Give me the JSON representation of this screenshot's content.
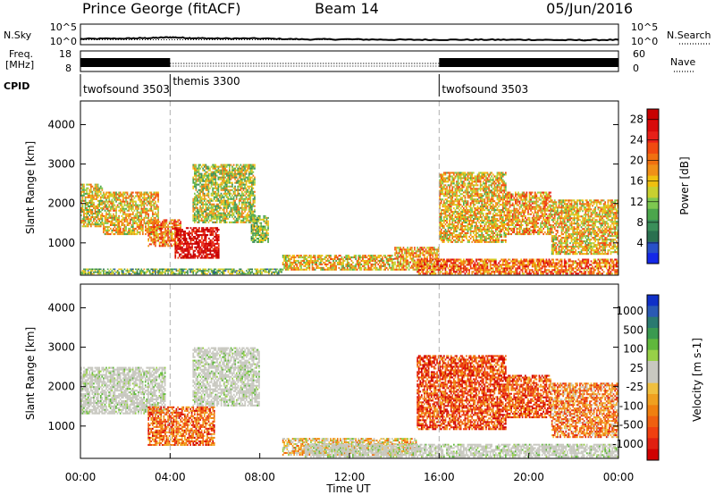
{
  "header": {
    "station": "Prince George (fitACF)",
    "beam": "Beam 14",
    "date": "05/Jun/2016"
  },
  "chart_data": [
    {
      "type": "line",
      "panel": "noise",
      "left_label": "N.Sky",
      "right_label": "N.Search",
      "left_ticks": [
        "10^5",
        "10^0"
      ],
      "right_ticks": [
        "10^5",
        "10^0"
      ],
      "scale": "log",
      "ylim_exponent": [
        0,
        5
      ],
      "series": [
        {
          "name": "N.Sky",
          "style": "solid",
          "x_hours": [
            0,
            2,
            3,
            4,
            5,
            6,
            8,
            10,
            12,
            14,
            16,
            18,
            20,
            22,
            24
          ],
          "y_exp": [
            1.4,
            1.5,
            1.6,
            1.8,
            1.6,
            1.5,
            1.5,
            1.3,
            1.3,
            1.2,
            1.2,
            1.2,
            1.2,
            1.1,
            1.2
          ]
        },
        {
          "name": "N.Search",
          "style": "dotted",
          "x_hours": [
            0,
            24
          ],
          "y_exp": [
            1.2,
            1.2
          ]
        }
      ]
    },
    {
      "type": "line",
      "panel": "frequency",
      "left_label": "Freq.",
      "left_unit": "[MHz]",
      "right_label": "Nave",
      "left_ticks": [
        "18",
        "8"
      ],
      "right_ticks": [
        "60",
        "0"
      ],
      "note": "frequency toggles between two values while twofsound runs (drawn as a dense black band)",
      "series": [
        {
          "name": "Freq.",
          "segments": [
            [
              0,
              4,
              "band"
            ],
            [
              4,
              16,
              "dotted"
            ],
            [
              16,
              24,
              "band"
            ]
          ]
        },
        {
          "name": "Nave",
          "style": "dotted",
          "x_hours": [
            4,
            16
          ],
          "approx": 10
        }
      ]
    },
    {
      "type": "table",
      "panel": "cpid",
      "label": "CPID",
      "programs": [
        {
          "name": "twofsound",
          "id": "3503",
          "start_hour": 0,
          "end_hour": 4
        },
        {
          "name": "themis",
          "id": "3300",
          "start_hour": 4,
          "end_hour": 16
        },
        {
          "name": "twofsound",
          "id": "3503",
          "start_hour": 16,
          "end_hour": 24
        }
      ]
    },
    {
      "type": "heatmap",
      "panel": "power",
      "ylabel": "Slant Range [km]",
      "y_ticks": [
        1000,
        2000,
        3000,
        4000
      ],
      "ylim": [
        180,
        4600
      ],
      "xlim_hours": [
        0,
        24
      ],
      "colorbar": {
        "title": "Power [dB]",
        "ticks": [
          4,
          8,
          12,
          16,
          20,
          24,
          28
        ],
        "range": [
          0,
          30
        ],
        "colors": [
          "#1428e8",
          "#2850c8",
          "#2a7050",
          "#3a8f5a",
          "#4ca64c",
          "#7ec850",
          "#c8d030",
          "#f0c010",
          "#f09018",
          "#f07010",
          "#f04a10",
          "#e82018",
          "#d80a0a",
          "#c80000"
        ]
      },
      "regions": [
        {
          "t": [
            0.0,
            1.0
          ],
          "r": [
            1400,
            2500
          ],
          "level": 0.5
        },
        {
          "t": [
            1.0,
            3.5
          ],
          "r": [
            1200,
            2300
          ],
          "level": 0.55
        },
        {
          "t": [
            3.0,
            4.5
          ],
          "r": [
            900,
            1600
          ],
          "level": 0.65
        },
        {
          "t": [
            4.2,
            6.2
          ],
          "r": [
            600,
            1400
          ],
          "level": 0.95
        },
        {
          "t": [
            5.0,
            7.8
          ],
          "r": [
            1500,
            3000
          ],
          "level": 0.45
        },
        {
          "t": [
            7.6,
            8.4
          ],
          "r": [
            1000,
            1700
          ],
          "level": 0.4
        },
        {
          "t": [
            9.0,
            14.0
          ],
          "r": [
            300,
            700
          ],
          "level": 0.55
        },
        {
          "t": [
            14.0,
            16.0
          ],
          "r": [
            300,
            900
          ],
          "level": 0.6
        },
        {
          "t": [
            16.0,
            19.0
          ],
          "r": [
            1000,
            2800
          ],
          "level": 0.55
        },
        {
          "t": [
            19.0,
            21.0
          ],
          "r": [
            1200,
            2300
          ],
          "level": 0.6
        },
        {
          "t": [
            21.0,
            24.0
          ],
          "r": [
            700,
            2100
          ],
          "level": 0.55
        },
        {
          "t": [
            15.0,
            24.0
          ],
          "r": [
            200,
            600
          ],
          "level": 0.7
        },
        {
          "t": [
            0.0,
            9.0
          ],
          "r": [
            200,
            350
          ],
          "level": 0.35
        }
      ]
    },
    {
      "type": "heatmap",
      "panel": "velocity",
      "ylabel": "Slant Range [km]",
      "xlabel": "Time UT",
      "x_ticks": [
        "00:00",
        "04:00",
        "08:00",
        "12:00",
        "16:00",
        "20:00",
        "00:00"
      ],
      "y_ticks": [
        1000,
        2000,
        3000,
        4000
      ],
      "ylim": [
        180,
        4600
      ],
      "xlim_hours": [
        0,
        24
      ],
      "colorbar": {
        "title": "Velocity [m s-1]",
        "ticks": [
          "1000",
          "500",
          "100",
          "25",
          "-25",
          "-100",
          "-500",
          "-1000"
        ],
        "colors": [
          "#1030c8",
          "#2a5ab4",
          "#2a7a70",
          "#3a9a50",
          "#60b83c",
          "#98d048",
          "#c8c8c0",
          "#c8c8c0",
          "#f0c040",
          "#f0a020",
          "#f08010",
          "#f06010",
          "#f04010",
          "#e02010",
          "#d00000"
        ]
      },
      "regions": [
        {
          "t": [
            0.0,
            3.8
          ],
          "r": [
            1300,
            2500
          ],
          "level": 0.5
        },
        {
          "t": [
            3.0,
            6.0
          ],
          "r": [
            500,
            1500
          ],
          "level": 0.75
        },
        {
          "t": [
            5.0,
            8.0
          ],
          "r": [
            1500,
            3000
          ],
          "level": 0.5
        },
        {
          "t": [
            9.0,
            15.0
          ],
          "r": [
            250,
            700
          ],
          "level": 0.55
        },
        {
          "t": [
            15.0,
            19.0
          ],
          "r": [
            900,
            2800
          ],
          "level": 0.82
        },
        {
          "t": [
            19.0,
            21.0
          ],
          "r": [
            1200,
            2300
          ],
          "level": 0.8
        },
        {
          "t": [
            21.0,
            24.0
          ],
          "r": [
            700,
            2100
          ],
          "level": 0.7
        },
        {
          "t": [
            10.0,
            24.0
          ],
          "r": [
            200,
            550
          ],
          "level": 0.48
        }
      ]
    }
  ]
}
